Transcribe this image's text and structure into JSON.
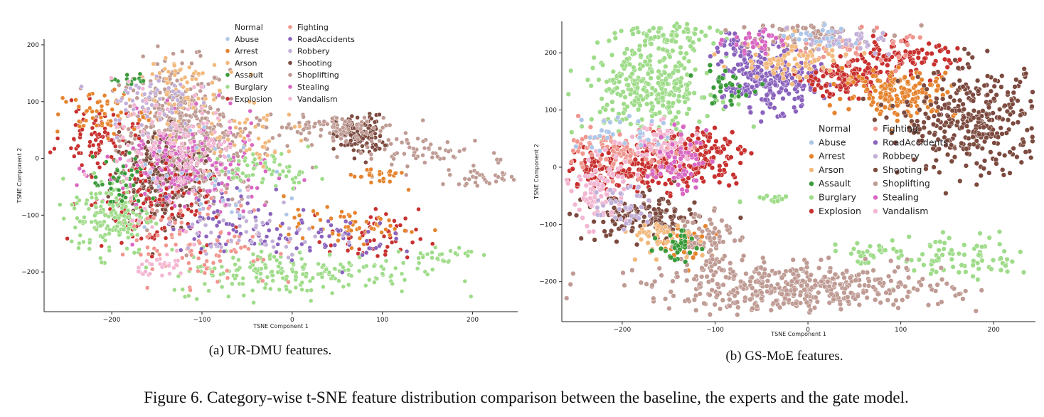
{
  "figure": {
    "caption": "Figure 6. Category-wise t-SNE feature distribution comparison between the baseline, the experts and the gate model."
  },
  "categories": [
    {
      "name": "Normal",
      "color": ""
    },
    {
      "name": "Abuse",
      "color": "#aec7e8"
    },
    {
      "name": "Arrest",
      "color": "#e6832e"
    },
    {
      "name": "Arson",
      "color": "#f2b97d"
    },
    {
      "name": "Assault",
      "color": "#3a9a3a"
    },
    {
      "name": "Burglary",
      "color": "#9fdc8a"
    },
    {
      "name": "Explosion",
      "color": "#c8302e"
    },
    {
      "name": "Fighting",
      "color": "#f0968f"
    },
    {
      "name": "RoadAccidents",
      "color": "#8a62bd"
    },
    {
      "name": "Robbery",
      "color": "#c3b0d8"
    },
    {
      "name": "Shooting",
      "color": "#7c4a3f"
    },
    {
      "name": "Shoplifting",
      "color": "#bf9b94"
    },
    {
      "name": "Stealing",
      "color": "#d867c2"
    },
    {
      "name": "Vandalism",
      "color": "#f3b6d2"
    }
  ],
  "chart_data": [
    {
      "type": "scatter",
      "caption": "(a) UR-DMU features.",
      "xlabel": "TSNE Component 1",
      "ylabel": "TSNE Component 2",
      "xlim": [
        -275,
        250
      ],
      "ylim": [
        -270,
        210
      ],
      "xticks": [
        -200,
        -100,
        0,
        100,
        200
      ],
      "yticks": [
        -200,
        -100,
        0,
        100,
        200
      ],
      "legend_position": "top-center",
      "clusters": [
        {
          "category": "Shoplifting",
          "x": -130,
          "y": 60,
          "sx": 30,
          "sy": 55,
          "n": 380
        },
        {
          "category": "Shoplifting",
          "x": -100,
          "y": -10,
          "sx": 30,
          "sy": 40,
          "n": 200
        },
        {
          "category": "Shooting",
          "x": -150,
          "y": -40,
          "sx": 25,
          "sy": 45,
          "n": 220
        },
        {
          "category": "Shooting",
          "x": 75,
          "y": 40,
          "sx": 13,
          "sy": 18,
          "n": 130
        },
        {
          "category": "Shoplifting",
          "x": 40,
          "y": 55,
          "sx": 40,
          "sy": 10,
          "n": 90
        },
        {
          "category": "Shoplifting",
          "x": 150,
          "y": 10,
          "sx": 45,
          "sy": 15,
          "n": 70
        },
        {
          "category": "Shoplifting",
          "x": 210,
          "y": -35,
          "sx": 20,
          "sy": 6,
          "n": 30
        },
        {
          "category": "Stealing",
          "x": -120,
          "y": -20,
          "sx": 45,
          "sy": 45,
          "n": 220
        },
        {
          "category": "Explosion",
          "x": -215,
          "y": 40,
          "sx": 20,
          "sy": 25,
          "n": 80
        },
        {
          "category": "Explosion",
          "x": -160,
          "y": -80,
          "sx": 35,
          "sy": 40,
          "n": 120
        },
        {
          "category": "Explosion",
          "x": 90,
          "y": -140,
          "sx": 25,
          "sy": 25,
          "n": 50
        },
        {
          "category": "Burglary",
          "x": -200,
          "y": -100,
          "sx": 22,
          "sy": 35,
          "n": 160
        },
        {
          "category": "Burglary",
          "x": 0,
          "y": -200,
          "sx": 70,
          "sy": 20,
          "n": 200
        },
        {
          "category": "Burglary",
          "x": 160,
          "y": -170,
          "sx": 20,
          "sy": 8,
          "n": 30
        },
        {
          "category": "Burglary",
          "x": -30,
          "y": -20,
          "sx": 30,
          "sy": 15,
          "n": 60
        },
        {
          "category": "Arrest",
          "x": -210,
          "y": 80,
          "sx": 25,
          "sy": 20,
          "n": 60
        },
        {
          "category": "Arrest",
          "x": 60,
          "y": -120,
          "sx": 35,
          "sy": 15,
          "n": 60
        },
        {
          "category": "Arrest",
          "x": 95,
          "y": -30,
          "sx": 15,
          "sy": 10,
          "n": 25
        },
        {
          "category": "Arson",
          "x": -130,
          "y": 130,
          "sx": 25,
          "sy": 30,
          "n": 60
        },
        {
          "category": "Arson",
          "x": -60,
          "y": 40,
          "sx": 40,
          "sy": 30,
          "n": 50
        },
        {
          "category": "Assault",
          "x": -190,
          "y": -50,
          "sx": 15,
          "sy": 25,
          "n": 40
        },
        {
          "category": "Assault",
          "x": -180,
          "y": 140,
          "sx": 10,
          "sy": 10,
          "n": 15
        },
        {
          "category": "Fighting",
          "x": -100,
          "y": -150,
          "sx": 40,
          "sy": 40,
          "n": 100
        },
        {
          "category": "RoadAccidents",
          "x": -60,
          "y": -110,
          "sx": 40,
          "sy": 30,
          "n": 60
        },
        {
          "category": "RoadAccidents",
          "x": 30,
          "y": -140,
          "sx": 40,
          "sy": 20,
          "n": 50
        },
        {
          "category": "Robbery",
          "x": -160,
          "y": 100,
          "sx": 25,
          "sy": 30,
          "n": 60
        },
        {
          "category": "Robbery",
          "x": -40,
          "y": -130,
          "sx": 40,
          "sy": 30,
          "n": 50
        },
        {
          "category": "Vandalism",
          "x": -130,
          "y": 20,
          "sx": 35,
          "sy": 55,
          "n": 120
        },
        {
          "category": "Vandalism",
          "x": -140,
          "y": -190,
          "sx": 15,
          "sy": 10,
          "n": 30
        },
        {
          "category": "Abuse",
          "x": -80,
          "y": -50,
          "sx": 50,
          "sy": 40,
          "n": 30
        }
      ]
    },
    {
      "type": "scatter",
      "caption": "(b) GS-MoE features.",
      "xlabel": "TSNE Component 1",
      "ylabel": "TSNE Component 2",
      "xlim": [
        -265,
        245
      ],
      "ylim": [
        -270,
        255
      ],
      "xticks": [
        -200,
        -100,
        0,
        100,
        200
      ],
      "yticks": [
        -200,
        -100,
        0,
        100,
        200
      ],
      "legend_position": "center",
      "clusters": [
        {
          "category": "Burglary",
          "x": -170,
          "y": 140,
          "sx": 35,
          "sy": 40,
          "n": 320
        },
        {
          "category": "Burglary",
          "x": -150,
          "y": 230,
          "sx": 25,
          "sy": 10,
          "n": 60
        },
        {
          "category": "Burglary",
          "x": 70,
          "y": -150,
          "sx": 25,
          "sy": 10,
          "n": 30
        },
        {
          "category": "Burglary",
          "x": 170,
          "y": -160,
          "sx": 35,
          "sy": 20,
          "n": 80
        },
        {
          "category": "Burglary",
          "x": -40,
          "y": -55,
          "sx": 12,
          "sy": 5,
          "n": 15
        },
        {
          "category": "RoadAccidents",
          "x": -40,
          "y": 150,
          "sx": 25,
          "sy": 25,
          "n": 260
        },
        {
          "category": "RoadAccidents",
          "x": -70,
          "y": 210,
          "sx": 20,
          "sy": 15,
          "n": 50
        },
        {
          "category": "Explosion",
          "x": -180,
          "y": 0,
          "sx": 45,
          "sy": 20,
          "n": 220
        },
        {
          "category": "Explosion",
          "x": -120,
          "y": 30,
          "sx": 25,
          "sy": 20,
          "n": 120
        },
        {
          "category": "Explosion",
          "x": 35,
          "y": 155,
          "sx": 25,
          "sy": 15,
          "n": 130
        },
        {
          "category": "Explosion",
          "x": 100,
          "y": 190,
          "sx": 30,
          "sy": 15,
          "n": 100
        },
        {
          "category": "Arrest",
          "x": 100,
          "y": 130,
          "sx": 30,
          "sy": 20,
          "n": 160
        },
        {
          "category": "Arrest",
          "x": -130,
          "y": -130,
          "sx": 15,
          "sy": 15,
          "n": 40
        },
        {
          "category": "Shooting",
          "x": 180,
          "y": 80,
          "sx": 40,
          "sy": 45,
          "n": 360
        },
        {
          "category": "Shooting",
          "x": -180,
          "y": -90,
          "sx": 30,
          "sy": 20,
          "n": 140
        },
        {
          "category": "Shoplifting",
          "x": -10,
          "y": -210,
          "sx": 80,
          "sy": 20,
          "n": 460
        },
        {
          "category": "Shoplifting",
          "x": -110,
          "y": -120,
          "sx": 15,
          "sy": 30,
          "n": 80
        },
        {
          "category": "Shoplifting",
          "x": -10,
          "y": 230,
          "sx": 40,
          "sy": 15,
          "n": 80
        },
        {
          "category": "Fighting",
          "x": -200,
          "y": 30,
          "sx": 30,
          "sy": 20,
          "n": 100
        },
        {
          "category": "Fighting",
          "x": 50,
          "y": 210,
          "sx": 30,
          "sy": 15,
          "n": 40
        },
        {
          "category": "Vandalism",
          "x": -225,
          "y": -40,
          "sx": 15,
          "sy": 30,
          "n": 90
        },
        {
          "category": "Vandalism",
          "x": -160,
          "y": 40,
          "sx": 20,
          "sy": 20,
          "n": 60
        },
        {
          "category": "Arson",
          "x": -10,
          "y": 190,
          "sx": 30,
          "sy": 20,
          "n": 90
        },
        {
          "category": "Arson",
          "x": -160,
          "y": -120,
          "sx": 20,
          "sy": 15,
          "n": 50
        },
        {
          "category": "Assault",
          "x": -140,
          "y": -140,
          "sx": 10,
          "sy": 15,
          "n": 40
        },
        {
          "category": "Assault",
          "x": -90,
          "y": 140,
          "sx": 15,
          "sy": 15,
          "n": 30
        },
        {
          "category": "Robbery",
          "x": 40,
          "y": 220,
          "sx": 30,
          "sy": 10,
          "n": 40
        },
        {
          "category": "Robbery",
          "x": -200,
          "y": -70,
          "sx": 15,
          "sy": 20,
          "n": 40
        },
        {
          "category": "Stealing",
          "x": -140,
          "y": 10,
          "sx": 15,
          "sy": 25,
          "n": 60
        },
        {
          "category": "Stealing",
          "x": -60,
          "y": 220,
          "sx": 15,
          "sy": 10,
          "n": 30
        },
        {
          "category": "Abuse",
          "x": -200,
          "y": 60,
          "sx": 25,
          "sy": 20,
          "n": 30
        },
        {
          "category": "Abuse",
          "x": 20,
          "y": 230,
          "sx": 20,
          "sy": 10,
          "n": 20
        }
      ]
    }
  ]
}
